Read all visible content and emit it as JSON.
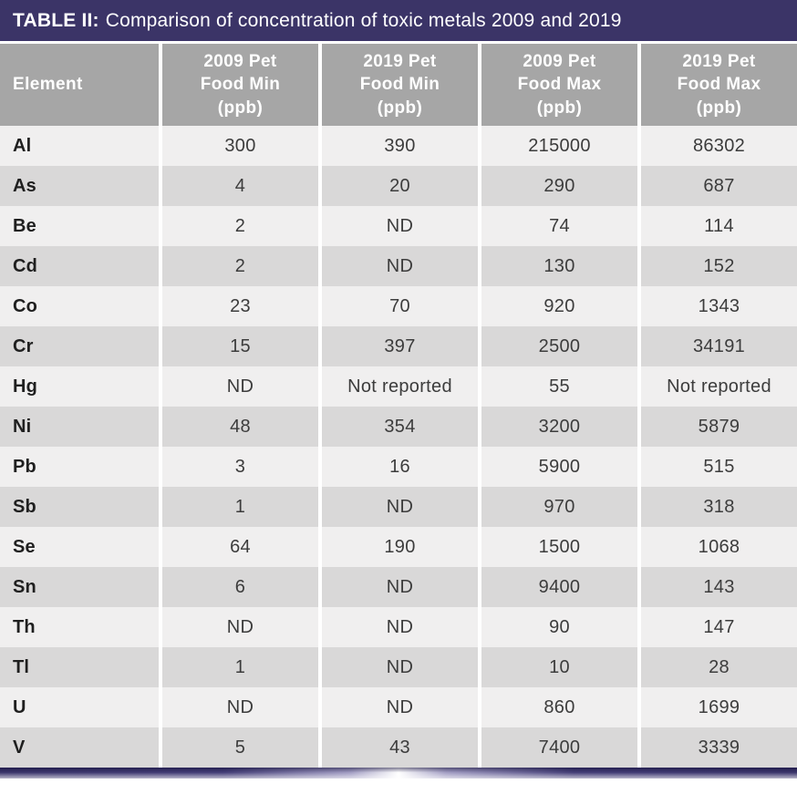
{
  "title": {
    "label": "TABLE II:",
    "text": "Comparison of concentration of toxic metals 2009 and 2019"
  },
  "colors": {
    "title_bar": "#3b3467",
    "header_bg": "#a6a6a6",
    "row_light": "#f0efef",
    "row_dark": "#d9d8d8",
    "separator": "#ffffff"
  },
  "table": {
    "headers": [
      "Element",
      "2009 Pet\nFood Min\n(ppb)",
      "2019 Pet\nFood Min\n(ppb)",
      "2009 Pet\nFood Max\n(ppb)",
      "2019 Pet\nFood Max\n(ppb)"
    ],
    "rows": [
      [
        "Al",
        "300",
        "390",
        "215000",
        "86302"
      ],
      [
        "As",
        "4",
        "20",
        "290",
        "687"
      ],
      [
        "Be",
        "2",
        "ND",
        "74",
        "114"
      ],
      [
        "Cd",
        "2",
        "ND",
        "130",
        "152"
      ],
      [
        "Co",
        "23",
        "70",
        "920",
        "1343"
      ],
      [
        "Cr",
        "15",
        "397",
        "2500",
        "34191"
      ],
      [
        "Hg",
        "ND",
        "Not reported",
        "55",
        "Not reported"
      ],
      [
        "Ni",
        "48",
        "354",
        "3200",
        "5879"
      ],
      [
        "Pb",
        "3",
        "16",
        "5900",
        "515"
      ],
      [
        "Sb",
        "1",
        "ND",
        "970",
        "318"
      ],
      [
        "Se",
        "64",
        "190",
        "1500",
        "1068"
      ],
      [
        "Sn",
        "6",
        "ND",
        "9400",
        "143"
      ],
      [
        "Th",
        "ND",
        "ND",
        "90",
        "147"
      ],
      [
        "Tl",
        "1",
        "ND",
        "10",
        "28"
      ],
      [
        "U",
        "ND",
        "ND",
        "860",
        "1699"
      ],
      [
        "V",
        "5",
        "43",
        "7400",
        "3339"
      ]
    ]
  }
}
